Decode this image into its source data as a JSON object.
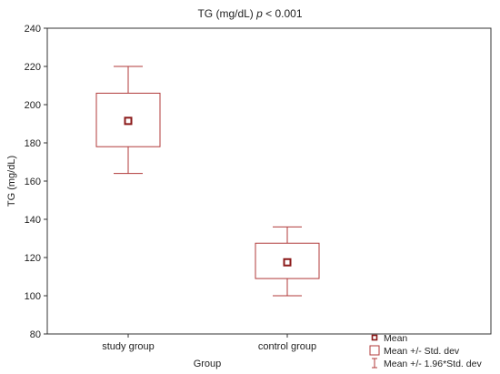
{
  "chart_data": {
    "type": "boxplot",
    "title_prefix": "TG (mg/dL) ",
    "title_p": "p",
    "title_suffix": " < 0.001",
    "xlabel": "Group",
    "ylabel": "TG (mg/dL)",
    "ylim": [
      80,
      240
    ],
    "yticks": [
      80,
      100,
      120,
      140,
      160,
      180,
      200,
      220,
      240
    ],
    "grid": false,
    "legend_position": "bottom-right",
    "categories": [
      "study group",
      "control group"
    ],
    "series": [
      {
        "category": "study group",
        "mean": 191.5,
        "sd_low": 178,
        "sd_high": 206,
        "ci_low": 164,
        "ci_high": 220
      },
      {
        "category": "control group",
        "mean": 117.5,
        "sd_low": 109,
        "sd_high": 127.5,
        "ci_low": 100,
        "ci_high": 136
      }
    ],
    "legend": [
      {
        "label": "Mean",
        "symbol": "mean"
      },
      {
        "label": "Mean +/- Std. dev",
        "symbol": "box"
      },
      {
        "label": "Mean +/- 1.96*Std. dev",
        "symbol": "whisker"
      }
    ],
    "colors": {
      "box": "#b03a3a",
      "mean_marker": "#8b1a1a",
      "axis": "#333333"
    }
  }
}
